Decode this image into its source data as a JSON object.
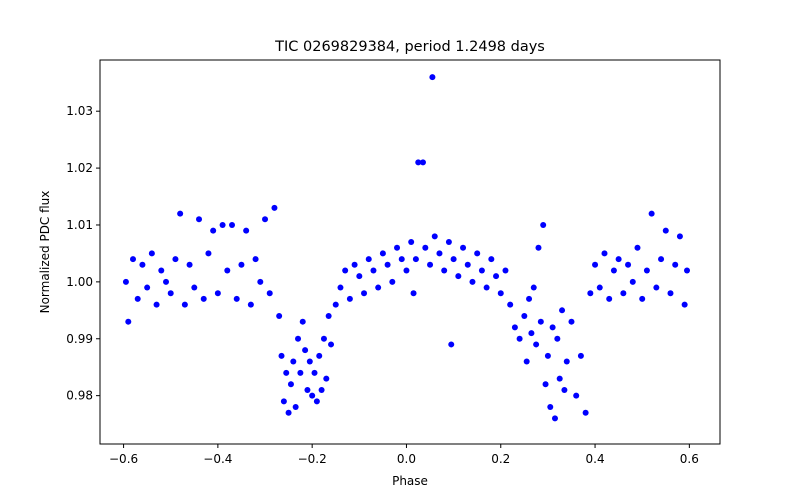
{
  "chart_data": {
    "type": "scatter",
    "title": "TIC 0269829384, period 1.2498 days",
    "xlabel": "Phase",
    "ylabel": "Normalized PDC flux",
    "xlim": [
      -0.65,
      0.665
    ],
    "ylim": [
      0.9715,
      1.039
    ],
    "xticks": [
      -0.6,
      -0.4,
      -0.2,
      0.0,
      0.2,
      0.4,
      0.6
    ],
    "xtick_labels": [
      "−0.6",
      "−0.4",
      "−0.2",
      "0.0",
      "0.2",
      "0.4",
      "0.6"
    ],
    "yticks": [
      0.98,
      0.99,
      1.0,
      1.01,
      1.02,
      1.03
    ],
    "ytick_labels": [
      "0.98",
      "0.99",
      "1.00",
      "1.01",
      "1.02",
      "1.03"
    ],
    "grid": false,
    "marker_color": "#0000ff",
    "series": [
      {
        "name": "TIC 0269829384",
        "color": "#0000ff",
        "points": [
          [
            -0.595,
            1.0
          ],
          [
            -0.59,
            0.993
          ],
          [
            -0.58,
            1.004
          ],
          [
            -0.57,
            0.997
          ],
          [
            -0.56,
            1.003
          ],
          [
            -0.55,
            0.999
          ],
          [
            -0.54,
            1.005
          ],
          [
            -0.53,
            0.996
          ],
          [
            -0.52,
            1.002
          ],
          [
            -0.51,
            1.0
          ],
          [
            -0.5,
            0.998
          ],
          [
            -0.49,
            1.004
          ],
          [
            -0.48,
            1.012
          ],
          [
            -0.47,
            0.996
          ],
          [
            -0.46,
            1.003
          ],
          [
            -0.45,
            0.999
          ],
          [
            -0.44,
            1.011
          ],
          [
            -0.43,
            0.997
          ],
          [
            -0.42,
            1.005
          ],
          [
            -0.41,
            1.009
          ],
          [
            -0.4,
            0.998
          ],
          [
            -0.39,
            1.01
          ],
          [
            -0.38,
            1.002
          ],
          [
            -0.37,
            1.01
          ],
          [
            -0.36,
            0.997
          ],
          [
            -0.35,
            1.003
          ],
          [
            -0.34,
            1.009
          ],
          [
            -0.33,
            0.996
          ],
          [
            -0.32,
            1.004
          ],
          [
            -0.31,
            1.0
          ],
          [
            -0.3,
            1.011
          ],
          [
            -0.29,
            0.998
          ],
          [
            -0.28,
            1.013
          ],
          [
            -0.27,
            0.994
          ],
          [
            -0.265,
            0.987
          ],
          [
            -0.26,
            0.979
          ],
          [
            -0.255,
            0.984
          ],
          [
            -0.25,
            0.977
          ],
          [
            -0.245,
            0.982
          ],
          [
            -0.24,
            0.986
          ],
          [
            -0.235,
            0.978
          ],
          [
            -0.23,
            0.99
          ],
          [
            -0.225,
            0.984
          ],
          [
            -0.22,
            0.993
          ],
          [
            -0.215,
            0.988
          ],
          [
            -0.21,
            0.981
          ],
          [
            -0.205,
            0.986
          ],
          [
            -0.2,
            0.98
          ],
          [
            -0.195,
            0.984
          ],
          [
            -0.19,
            0.979
          ],
          [
            -0.185,
            0.987
          ],
          [
            -0.18,
            0.981
          ],
          [
            -0.175,
            0.99
          ],
          [
            -0.17,
            0.983
          ],
          [
            -0.165,
            0.994
          ],
          [
            -0.16,
            0.989
          ],
          [
            -0.15,
            0.996
          ],
          [
            -0.14,
            0.999
          ],
          [
            -0.13,
            1.002
          ],
          [
            -0.12,
            0.997
          ],
          [
            -0.11,
            1.003
          ],
          [
            -0.1,
            1.001
          ],
          [
            -0.09,
            0.998
          ],
          [
            -0.08,
            1.004
          ],
          [
            -0.07,
            1.002
          ],
          [
            -0.06,
            0.999
          ],
          [
            -0.05,
            1.005
          ],
          [
            -0.04,
            1.003
          ],
          [
            -0.03,
            1.0
          ],
          [
            -0.02,
            1.006
          ],
          [
            -0.01,
            1.004
          ],
          [
            0.0,
            1.002
          ],
          [
            0.01,
            1.007
          ],
          [
            0.015,
            0.998
          ],
          [
            0.02,
            1.004
          ],
          [
            0.025,
            1.021
          ],
          [
            0.035,
            1.021
          ],
          [
            0.04,
            1.006
          ],
          [
            0.05,
            1.003
          ],
          [
            0.055,
            1.036
          ],
          [
            0.06,
            1.008
          ],
          [
            0.07,
            1.005
          ],
          [
            0.08,
            1.002
          ],
          [
            0.09,
            1.007
          ],
          [
            0.095,
            0.989
          ],
          [
            0.1,
            1.004
          ],
          [
            0.11,
            1.001
          ],
          [
            0.12,
            1.006
          ],
          [
            0.13,
            1.003
          ],
          [
            0.14,
            1.0
          ],
          [
            0.15,
            1.005
          ],
          [
            0.16,
            1.002
          ],
          [
            0.17,
            0.999
          ],
          [
            0.18,
            1.004
          ],
          [
            0.19,
            1.001
          ],
          [
            0.2,
            0.998
          ],
          [
            0.21,
            1.002
          ],
          [
            0.22,
            0.996
          ],
          [
            0.23,
            0.992
          ],
          [
            0.24,
            0.99
          ],
          [
            0.25,
            0.994
          ],
          [
            0.255,
            0.986
          ],
          [
            0.26,
            0.997
          ],
          [
            0.265,
            0.991
          ],
          [
            0.27,
            0.999
          ],
          [
            0.275,
            0.989
          ],
          [
            0.28,
            1.006
          ],
          [
            0.285,
            0.993
          ],
          [
            0.29,
            1.01
          ],
          [
            0.295,
            0.982
          ],
          [
            0.3,
            0.987
          ],
          [
            0.305,
            0.978
          ],
          [
            0.31,
            0.992
          ],
          [
            0.315,
            0.976
          ],
          [
            0.32,
            0.99
          ],
          [
            0.325,
            0.983
          ],
          [
            0.33,
            0.995
          ],
          [
            0.335,
            0.981
          ],
          [
            0.34,
            0.986
          ],
          [
            0.35,
            0.993
          ],
          [
            0.36,
            0.98
          ],
          [
            0.37,
            0.987
          ],
          [
            0.38,
            0.977
          ],
          [
            0.39,
            0.998
          ],
          [
            0.4,
            1.003
          ],
          [
            0.41,
            0.999
          ],
          [
            0.42,
            1.005
          ],
          [
            0.43,
            0.997
          ],
          [
            0.44,
            1.002
          ],
          [
            0.45,
            1.004
          ],
          [
            0.46,
            0.998
          ],
          [
            0.47,
            1.003
          ],
          [
            0.48,
            1.0
          ],
          [
            0.49,
            1.006
          ],
          [
            0.5,
            0.997
          ],
          [
            0.51,
            1.002
          ],
          [
            0.52,
            1.012
          ],
          [
            0.53,
            0.999
          ],
          [
            0.54,
            1.004
          ],
          [
            0.55,
            1.009
          ],
          [
            0.56,
            0.998
          ],
          [
            0.57,
            1.003
          ],
          [
            0.58,
            1.008
          ],
          [
            0.59,
            0.996
          ],
          [
            0.595,
            1.002
          ]
        ]
      }
    ]
  }
}
